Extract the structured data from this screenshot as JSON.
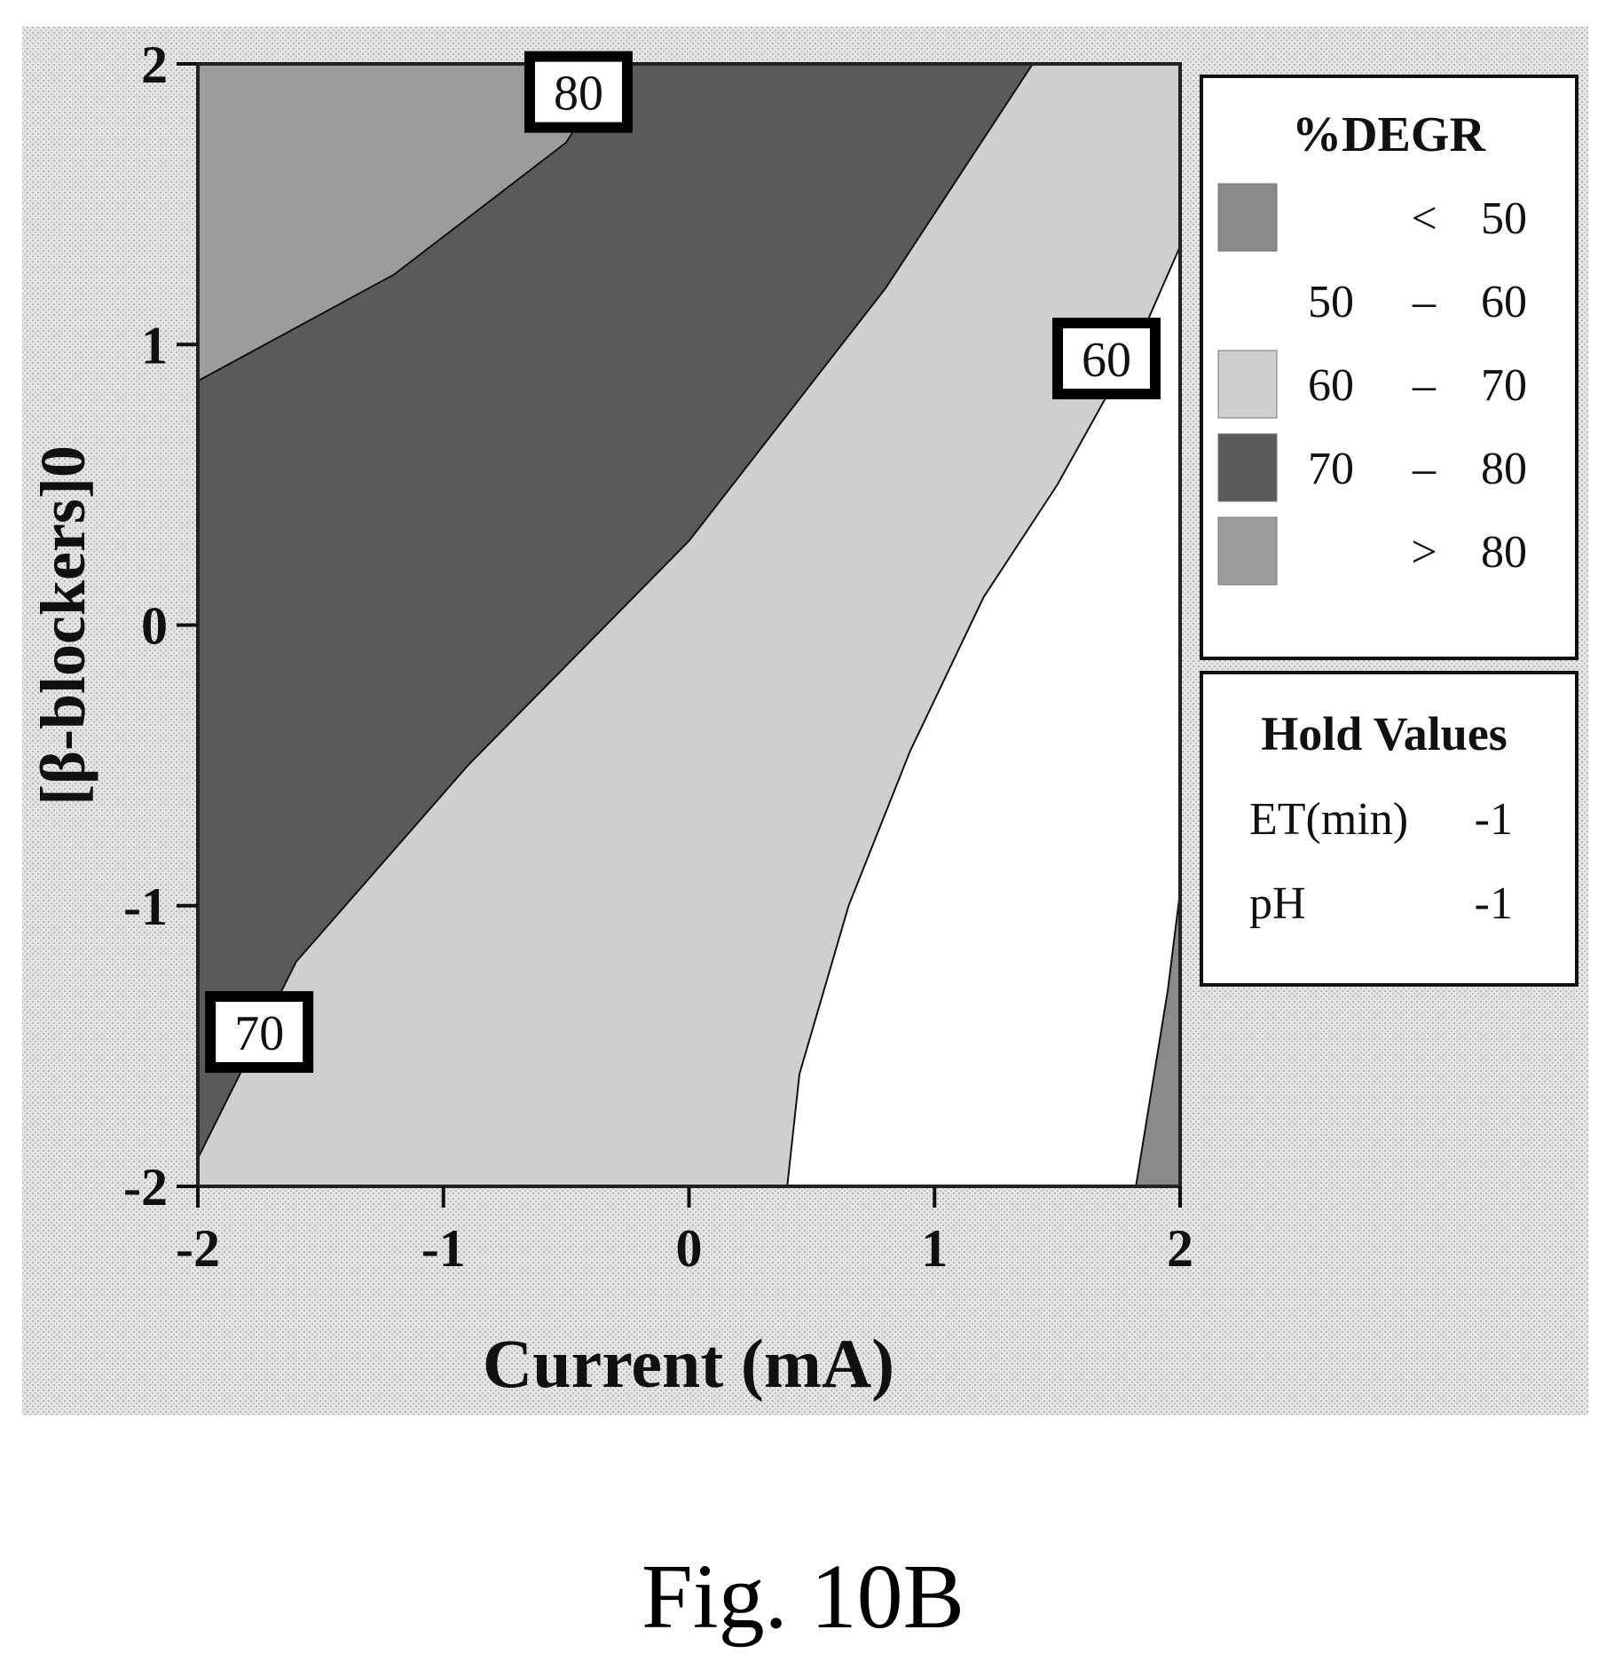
{
  "figure_caption": "Fig. 10B",
  "chart_data": {
    "type": "contour",
    "title": "",
    "xlabel": "Current (mA)",
    "ylabel": "[β-blockers]0",
    "xlim": [
      -2,
      2
    ],
    "ylim": [
      -2,
      2
    ],
    "x_ticks": [
      "-2",
      "-1",
      "0",
      "1",
      "2"
    ],
    "y_ticks": [
      "-2",
      "-1",
      "0",
      "1",
      "2"
    ],
    "grid": false,
    "background": "stippled gray",
    "legend": {
      "title": "%DEGR",
      "position": "right",
      "items": [
        {
          "from": "",
          "op": "<",
          "to": "50",
          "color": "#8a8a8a"
        },
        {
          "from": "50",
          "op": "–",
          "to": "60",
          "color": "#ffffff"
        },
        {
          "from": "60",
          "op": "–",
          "to": "70",
          "color": "#cfcfcf"
        },
        {
          "from": "70",
          "op": "–",
          "to": "80",
          "color": "#5a5a5a"
        },
        {
          "from": "",
          "op": ">",
          "to": "80",
          "color": "#9c9c9c"
        }
      ]
    },
    "hold_values": {
      "title": "Hold Values",
      "rows": [
        {
          "name": "ET(min)",
          "value": "-1"
        },
        {
          "name": "pH",
          "value": "-1"
        }
      ]
    },
    "contour_lines": [
      {
        "level": 80,
        "label": "80",
        "label_at": [
          -0.45,
          1.9
        ],
        "points": [
          [
            -2.0,
            0.87
          ],
          [
            -1.2,
            1.25
          ],
          [
            -0.5,
            1.72
          ],
          [
            -0.3,
            2.0
          ]
        ]
      },
      {
        "level": 70,
        "label": "70",
        "label_at": [
          -1.75,
          -1.45
        ],
        "points": [
          [
            -2.0,
            -1.9
          ],
          [
            -1.6,
            -1.2
          ],
          [
            -0.9,
            -0.5
          ],
          [
            0.0,
            0.3
          ],
          [
            0.8,
            1.2
          ],
          [
            1.4,
            2.0
          ]
        ]
      },
      {
        "level": 60,
        "label": "60",
        "label_at": [
          1.7,
          0.95
        ],
        "points": [
          [
            0.4,
            -2.0
          ],
          [
            0.45,
            -1.6
          ],
          [
            0.65,
            -1.0
          ],
          [
            0.9,
            -0.45
          ],
          [
            1.2,
            0.1
          ],
          [
            1.5,
            0.5
          ],
          [
            1.85,
            1.05
          ],
          [
            2.0,
            1.35
          ]
        ]
      },
      {
        "level": 50,
        "label": "",
        "points": [
          [
            1.82,
            -2.0
          ],
          [
            1.95,
            -1.3
          ],
          [
            2.0,
            -0.95
          ]
        ]
      }
    ],
    "regions": [
      {
        "range": ">80",
        "color": "#9c9c9c",
        "points": [
          [
            -2.0,
            2.0
          ],
          [
            -0.3,
            2.0
          ],
          [
            -0.5,
            1.72
          ],
          [
            -1.2,
            1.25
          ],
          [
            -2.0,
            0.87
          ]
        ]
      },
      {
        "range": "70-80",
        "color": "#5a5a5a",
        "points": [
          [
            -2.0,
            0.87
          ],
          [
            -1.2,
            1.25
          ],
          [
            -0.5,
            1.72
          ],
          [
            -0.3,
            2.0
          ],
          [
            1.4,
            2.0
          ],
          [
            0.8,
            1.2
          ],
          [
            0.0,
            0.3
          ],
          [
            -0.9,
            -0.5
          ],
          [
            -1.6,
            -1.2
          ],
          [
            -2.0,
            -1.9
          ]
        ]
      },
      {
        "range": "60-70",
        "color": "#cfcfcf",
        "points": [
          [
            -2.0,
            -1.9
          ],
          [
            -1.6,
            -1.2
          ],
          [
            -0.9,
            -0.5
          ],
          [
            0.0,
            0.3
          ],
          [
            0.8,
            1.2
          ],
          [
            1.4,
            2.0
          ],
          [
            2.0,
            2.0
          ],
          [
            2.0,
            1.35
          ],
          [
            1.85,
            1.05
          ],
          [
            1.5,
            0.5
          ],
          [
            1.2,
            0.1
          ],
          [
            0.9,
            -0.45
          ],
          [
            0.65,
            -1.0
          ],
          [
            0.45,
            -1.6
          ],
          [
            0.4,
            -2.0
          ],
          [
            -2.0,
            -2.0
          ]
        ]
      },
      {
        "range": "50-60",
        "color": "#ffffff",
        "points": [
          [
            0.4,
            -2.0
          ],
          [
            0.45,
            -1.6
          ],
          [
            0.65,
            -1.0
          ],
          [
            0.9,
            -0.45
          ],
          [
            1.2,
            0.1
          ],
          [
            1.5,
            0.5
          ],
          [
            1.85,
            1.05
          ],
          [
            2.0,
            1.35
          ],
          [
            2.0,
            -0.95
          ],
          [
            1.95,
            -1.3
          ],
          [
            1.82,
            -2.0
          ]
        ]
      },
      {
        "range": "<50",
        "color": "#8a8a8a",
        "points": [
          [
            1.82,
            -2.0
          ],
          [
            1.95,
            -1.3
          ],
          [
            2.0,
            -0.95
          ],
          [
            2.0,
            -2.0
          ]
        ]
      }
    ]
  }
}
